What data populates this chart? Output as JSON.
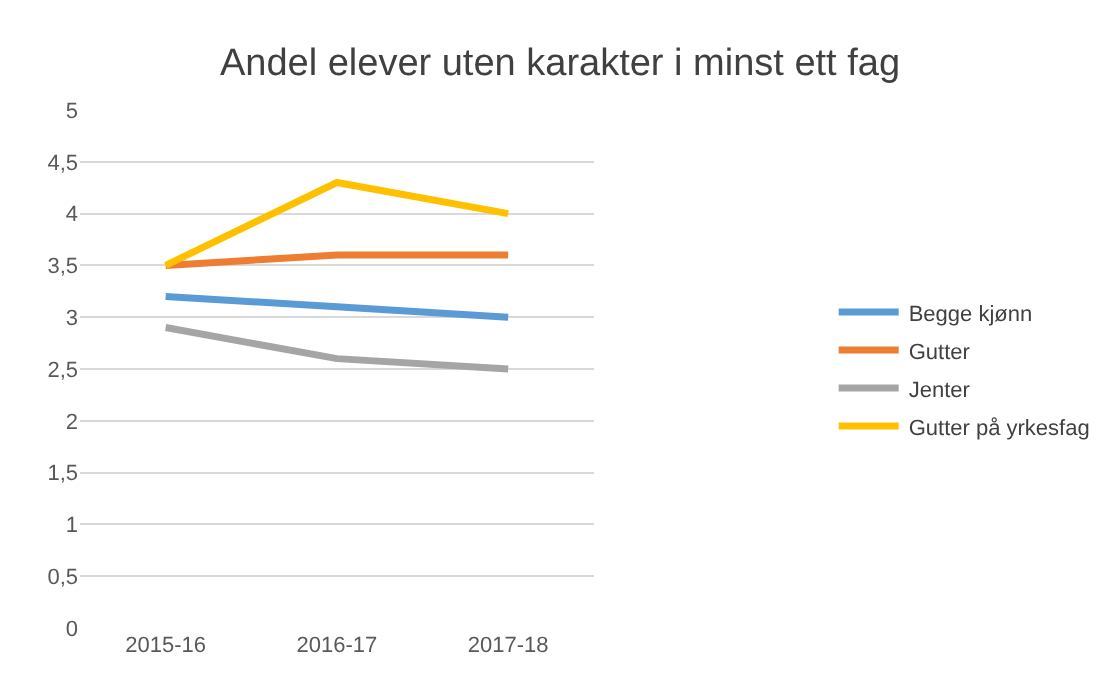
{
  "chart_data": {
    "type": "line",
    "title": "Andel elever uten karakter i minst ett fag",
    "categories": [
      "2015-16",
      "2016-17",
      "2017-18"
    ],
    "series": [
      {
        "name": "Begge kjønn",
        "color": "#5b9bd5",
        "values": [
          3.2,
          3.1,
          3.0
        ]
      },
      {
        "name": "Gutter",
        "color": "#ed7d31",
        "values": [
          3.5,
          3.6,
          3.6
        ]
      },
      {
        "name": "Jenter",
        "color": "#a5a5a5",
        "values": [
          2.9,
          2.6,
          2.5
        ]
      },
      {
        "name": "Gutter på yrkesfag",
        "color": "#ffc000",
        "values": [
          3.5,
          4.3,
          4.0
        ]
      }
    ],
    "ylim": [
      0,
      5
    ],
    "yticks": [
      {
        "value": 0,
        "label": "0"
      },
      {
        "value": 0.5,
        "label": "0,5"
      },
      {
        "value": 1,
        "label": "1"
      },
      {
        "value": 1.5,
        "label": "1,5"
      },
      {
        "value": 2,
        "label": "2"
      },
      {
        "value": 2.5,
        "label": "2,5"
      },
      {
        "value": 3,
        "label": "3"
      },
      {
        "value": 3.5,
        "label": "3,5"
      },
      {
        "value": 4,
        "label": "4"
      },
      {
        "value": 4.5,
        "label": "4,5"
      },
      {
        "value": 5,
        "label": "5"
      }
    ],
    "grid": "y",
    "legend": "right",
    "marker": "none",
    "line_style": "solid"
  }
}
